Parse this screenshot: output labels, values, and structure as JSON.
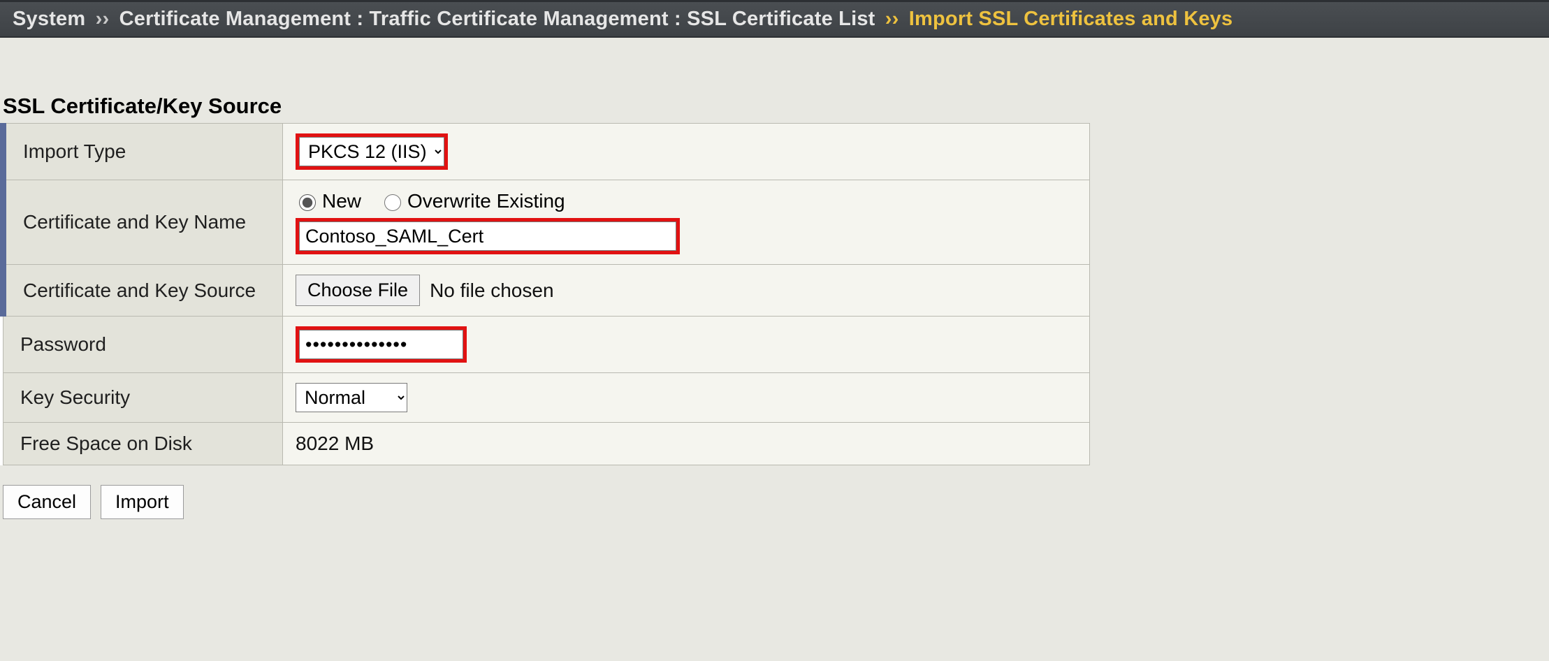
{
  "breadcrumb": {
    "root": "System",
    "sep": "››",
    "path": "Certificate Management : Traffic Certificate Management : SSL Certificate List",
    "current": "Import SSL Certificates and Keys"
  },
  "section": {
    "title": "SSL Certificate/Key Source"
  },
  "form": {
    "import_type": {
      "label": "Import Type",
      "value": "PKCS 12 (IIS)"
    },
    "cert_key_name": {
      "label": "Certificate and Key Name",
      "radio_new": "New",
      "radio_overwrite": "Overwrite Existing",
      "selected": "new",
      "value": "Contoso_SAML_Cert"
    },
    "cert_key_source": {
      "label": "Certificate and Key Source",
      "button": "Choose File",
      "status": "No file chosen"
    },
    "password": {
      "label": "Password",
      "value": "••••••••••••••"
    },
    "key_security": {
      "label": "Key Security",
      "value": "Normal"
    },
    "free_space": {
      "label": "Free Space on Disk",
      "value": "8022 MB"
    }
  },
  "buttons": {
    "cancel": "Cancel",
    "import": "Import"
  },
  "colors": {
    "highlight": "#e11212",
    "accent_blue": "#5a6b9a",
    "breadcrumb_gold": "#eec23f",
    "page_bg": "#e8e8e2",
    "label_bg": "#e3e3da",
    "value_bg": "#f5f5ef"
  }
}
